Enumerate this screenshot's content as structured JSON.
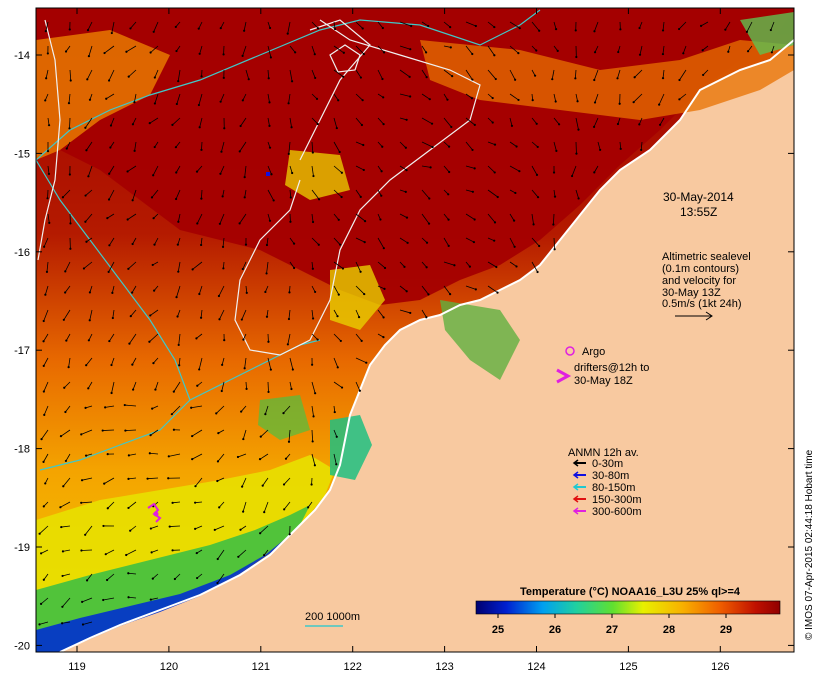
{
  "map": {
    "timestamp_date": "30-May-2014",
    "timestamp_time": "13:55Z",
    "x_ticks": [
      "119",
      "120",
      "121",
      "122",
      "123",
      "124",
      "125",
      "126"
    ],
    "y_ticks": [
      "-14",
      "-15",
      "-16",
      "-17",
      "-18",
      "-19",
      "-20"
    ],
    "altimetry_lines": [
      "Altimetric sealevel",
      "(0.1m contours)",
      "and velocity for",
      "30-May 13Z",
      "0.5m/s (1kt 24h)"
    ],
    "argo_label": "Argo",
    "drifters_lines": [
      "drifters@12h to",
      "30-May 18Z"
    ],
    "anmn": {
      "title": "ANMN 12h av.",
      "items": [
        {
          "label": "0-30m",
          "color": "#000000"
        },
        {
          "label": "30-80m",
          "color": "#1010e0"
        },
        {
          "label": "80-150m",
          "color": "#20c8d0"
        },
        {
          "label": "150-300m",
          "color": "#e01010"
        },
        {
          "label": "300-600m",
          "color": "#e020e0"
        }
      ]
    },
    "bathy_label": "200  1000m",
    "colorbar": {
      "title": "Temperature (°C) NOAA16_L3U 25% ql>=4",
      "tick_labels": [
        "25",
        "26",
        "27",
        "28",
        "29"
      ]
    },
    "credit": "© IMOS 07-Apr-2015 02:44:18 Hobart time",
    "colors": {
      "land": "#f8c9a0",
      "hot": "#a00000",
      "warm": "#e46a00",
      "orange": "#f4a000",
      "yellow": "#f2e000",
      "green": "#30c050",
      "cyan_contour": "#40c8c8",
      "altimetry_contour": "#f0f0f0"
    }
  }
}
